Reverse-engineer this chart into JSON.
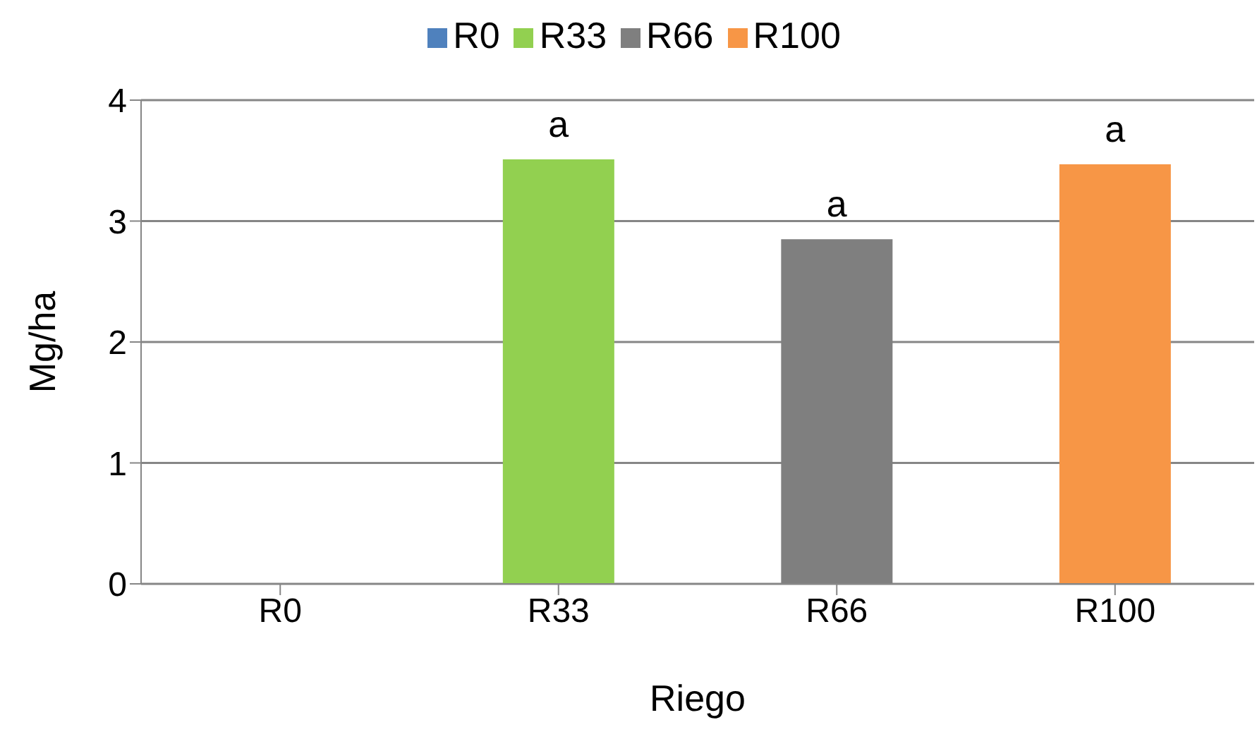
{
  "chart_data": {
    "type": "bar",
    "xlabel": "Riego",
    "ylabel": "Mg/ha",
    "categories": [
      "R0",
      "R33",
      "R66",
      "R100"
    ],
    "series": [
      {
        "name": "R0",
        "color": "#4f81bd",
        "values": [
          0,
          null,
          null,
          null
        ]
      },
      {
        "name": "R33",
        "color": "#92d050",
        "values": [
          null,
          3.51,
          null,
          null
        ]
      },
      {
        "name": "R66",
        "color": "#7f7f7f",
        "values": [
          null,
          null,
          2.85,
          null
        ]
      },
      {
        "name": "R100",
        "color": "#f79646",
        "values": [
          null,
          null,
          null,
          3.47
        ]
      }
    ],
    "stacked": true,
    "ylim": [
      0,
      4
    ],
    "yticks": [
      0,
      1,
      2,
      3,
      4
    ],
    "grid": "y",
    "legend": "top",
    "annotations": [
      {
        "text": "a",
        "x": "R33",
        "y": 3.51
      },
      {
        "text": "a",
        "x": "R66",
        "y": 2.85
      },
      {
        "text": "a",
        "x": "R100",
        "y": 3.47
      }
    ]
  }
}
